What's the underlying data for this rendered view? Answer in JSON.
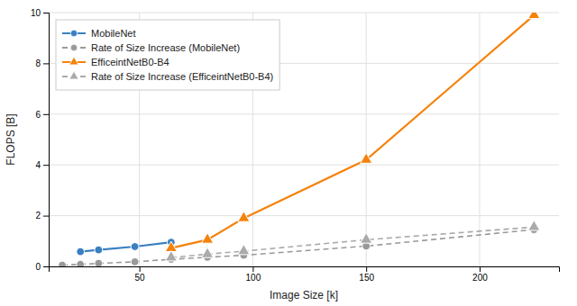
{
  "chart_data": {
    "type": "line",
    "xlabel": "Image Size [k]",
    "ylabel": "FLOPS [B]",
    "xlim": [
      10,
      235
    ],
    "ylim": [
      0,
      10
    ],
    "xticks": [
      50,
      100,
      150,
      200
    ],
    "yticks": [
      0,
      2,
      4,
      6,
      8,
      10
    ],
    "grid": true,
    "legend": "upper-left",
    "series": [
      {
        "name": "MobileNet",
        "color": "#3a7fc1",
        "marker": "circle",
        "line_style": "solid",
        "x": [
          24,
          32,
          48,
          64
        ],
        "values": [
          0.58,
          0.65,
          0.78,
          0.95
        ]
      },
      {
        "name": "Rate of Size Increase (MobileNet)",
        "color": "#999999",
        "marker": "circle",
        "line_style": "dashed",
        "x": [
          16,
          24,
          32,
          48,
          64,
          80,
          96,
          150,
          224
        ],
        "values": [
          0.05,
          0.08,
          0.12,
          0.18,
          0.28,
          0.36,
          0.44,
          0.8,
          1.45
        ]
      },
      {
        "name": "EfficeintNetB0-B4",
        "color": "#f5820a",
        "marker": "triangle",
        "line_style": "solid",
        "x": [
          64,
          80,
          96,
          150,
          224
        ],
        "values": [
          0.72,
          1.05,
          1.9,
          4.2,
          9.9
        ]
      },
      {
        "name": "Rate of Size Increase (EfficeintNetB0-B4)",
        "color": "#aaaaaa",
        "marker": "triangle",
        "line_style": "dashed",
        "x": [
          64,
          80,
          96,
          150,
          224
        ],
        "values": [
          0.35,
          0.48,
          0.6,
          1.05,
          1.55
        ]
      }
    ]
  }
}
